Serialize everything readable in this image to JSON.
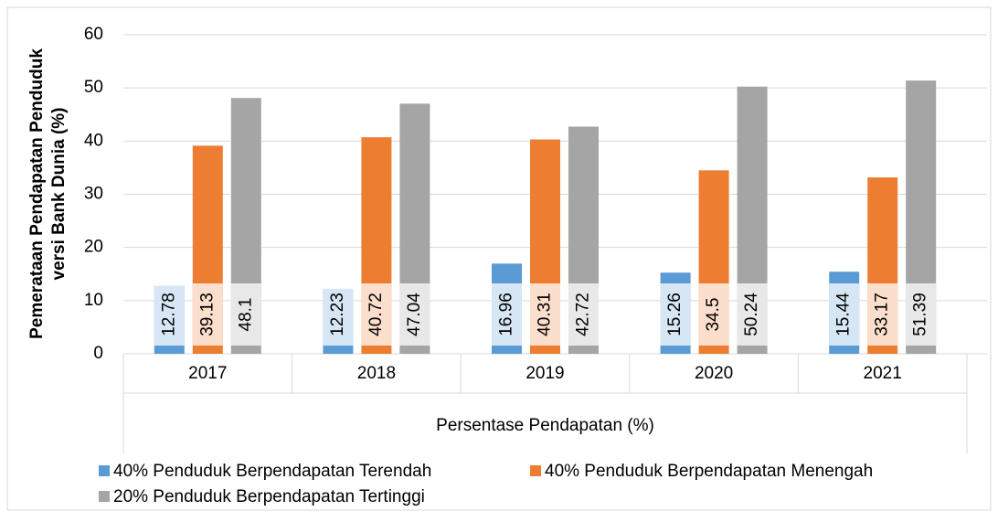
{
  "chart_data": {
    "type": "bar",
    "ylabel": [
      "Pemerataan Pendapatan Penduduk",
      "versi Bank Dunia (%)"
    ],
    "xlabel": "Persentase Pendapatan (%)",
    "categories": [
      "2017",
      "2018",
      "2019",
      "2020",
      "2021"
    ],
    "series": [
      {
        "name": "40% Penduduk Berpendapatan Terendah",
        "color": "#5b9bd5",
        "values": [
          12.78,
          12.23,
          16.96,
          15.26,
          15.44
        ]
      },
      {
        "name": "40% Penduduk Berpendapatan Menengah",
        "color": "#ed7d31",
        "values": [
          39.13,
          40.72,
          40.31,
          34.5,
          33.17
        ]
      },
      {
        "name": "20% Penduduk Berpendapatan Tertinggi",
        "color": "#a5a5a5",
        "values": [
          48.1,
          47.04,
          42.72,
          50.24,
          51.39
        ]
      }
    ],
    "ylim": [
      0,
      60
    ],
    "yticks": [
      0,
      10,
      20,
      30,
      40,
      50,
      60
    ],
    "grid": true
  }
}
